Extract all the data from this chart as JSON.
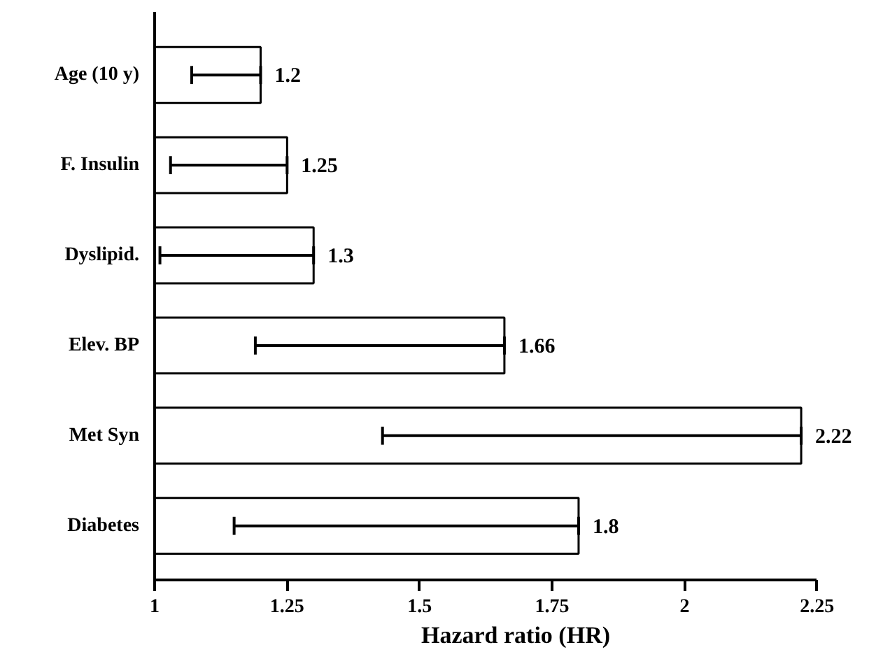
{
  "chart_data": {
    "type": "bar",
    "orientation": "horizontal",
    "xlabel": "Hazard ratio (HR)",
    "categories": [
      "Age (10 y)",
      "F. Insulin",
      "Dyslipid.",
      "Elev. BP",
      "Met Syn",
      "Diabetes"
    ],
    "values": [
      1.2,
      1.25,
      1.3,
      1.66,
      2.22,
      1.8
    ],
    "errors": [
      [
        1.07,
        1.2
      ],
      [
        1.03,
        1.25
      ],
      [
        1.01,
        1.3
      ],
      [
        1.19,
        1.66
      ],
      [
        1.43,
        2.22
      ],
      [
        1.15,
        1.8
      ]
    ],
    "colors": [
      "#ffffff",
      "#ffffff",
      "#ffffff",
      "#ffffff",
      "#ffffff",
      "#ffffff"
    ],
    "xlim": [
      1,
      2.25
    ],
    "xticks": [
      1,
      1.25,
      1.5,
      1.75,
      2,
      2.25
    ],
    "data_labels": true,
    "grid": false
  }
}
